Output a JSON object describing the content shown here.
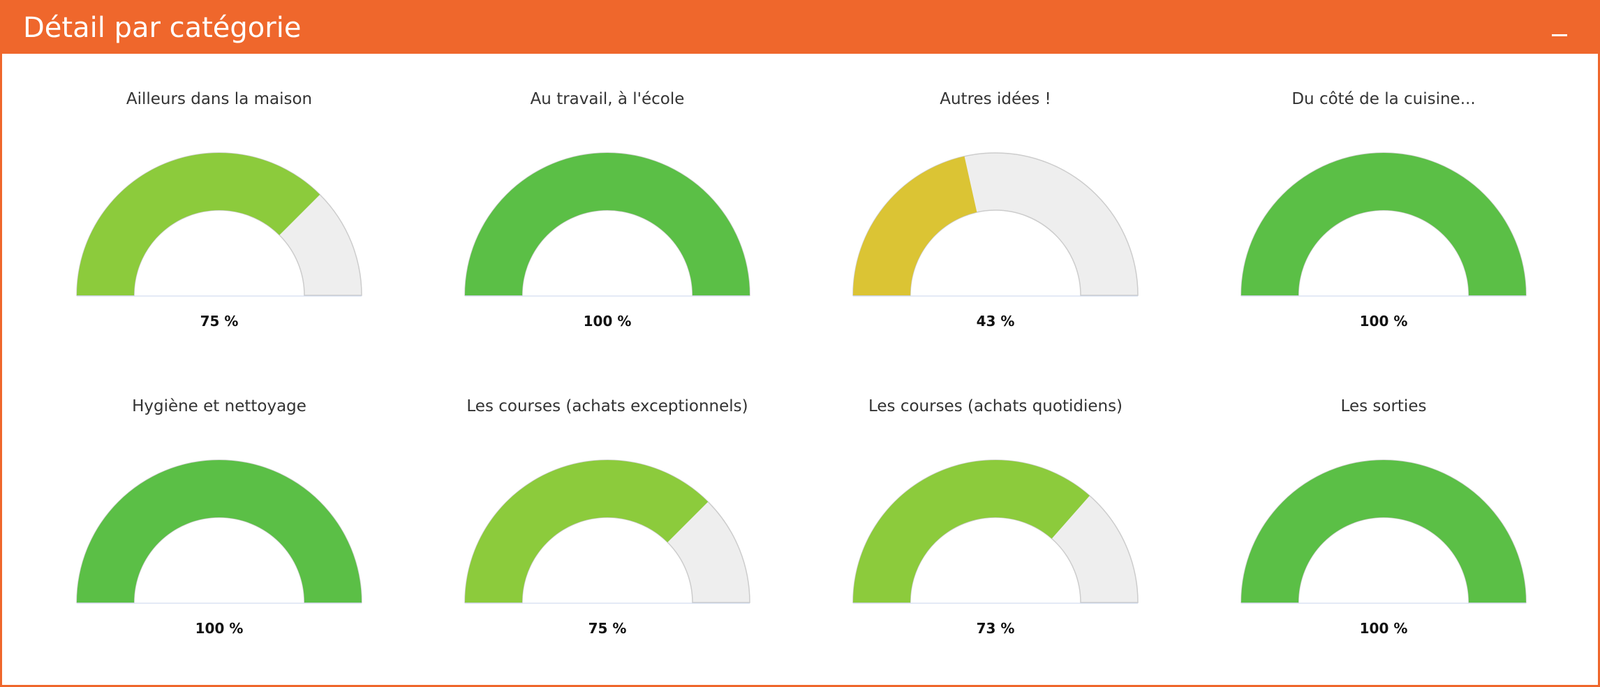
{
  "panel": {
    "title": "Détail par catégorie",
    "collapse_icon": "minus-icon"
  },
  "colors": {
    "header": "#ef672c",
    "full": "#5bbf46",
    "high": "#8ccb3c",
    "medium": "#dbc434",
    "empty": "#eeeeee"
  },
  "chart_data": {
    "type": "gauge",
    "min": 0,
    "max": 100,
    "unit": "%",
    "gauges": [
      {
        "label": "Ailleurs dans la maison",
        "value": 75,
        "display": "75 %",
        "color": "#8ccb3c"
      },
      {
        "label": "Au travail, à l'école",
        "value": 100,
        "display": "100 %",
        "color": "#5bbf46"
      },
      {
        "label": "Autres idées !",
        "value": 43,
        "display": "43 %",
        "color": "#dbc434"
      },
      {
        "label": "Du côté de la cuisine...",
        "value": 100,
        "display": "100 %",
        "color": "#5bbf46"
      },
      {
        "label": "Hygiène et nettoyage",
        "value": 100,
        "display": "100 %",
        "color": "#5bbf46"
      },
      {
        "label": "Les courses (achats exceptionnels)",
        "value": 75,
        "display": "75 %",
        "color": "#8ccb3c"
      },
      {
        "label": "Les courses (achats quotidiens)",
        "value": 73,
        "display": "73 %",
        "color": "#8ccb3c"
      },
      {
        "label": "Les sorties",
        "value": 100,
        "display": "100 %",
        "color": "#5bbf46"
      }
    ]
  }
}
